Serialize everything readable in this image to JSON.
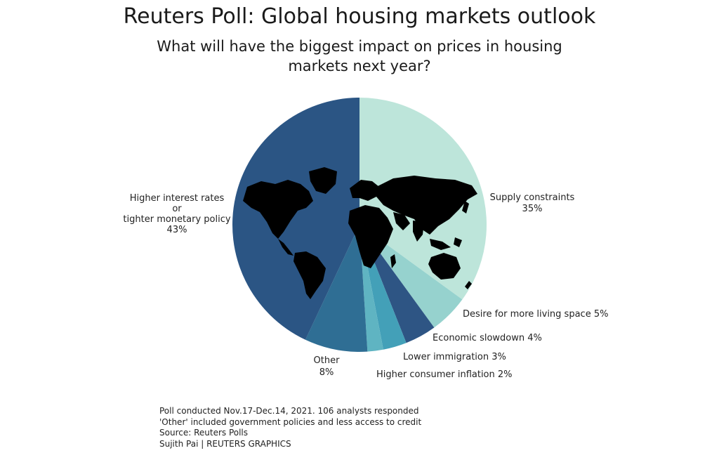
{
  "chart_data": {
    "type": "pie",
    "title": "Reuters Poll: Global housing markets outlook",
    "subtitle": "What will have the biggest impact on prices in housing markets next year?",
    "slices": [
      {
        "label": [
          "Supply constraints"
        ],
        "pct_text": "35%",
        "value": 35,
        "color": "#bde5da"
      },
      {
        "label": [
          "Desire for more living space"
        ],
        "pct_text": "5%",
        "value": 5,
        "color": "#96d2ce"
      },
      {
        "label": [
          "Economic slowdown"
        ],
        "pct_text": "4%",
        "value": 4,
        "color": "#2e5584"
      },
      {
        "label": [
          "Lower immigration"
        ],
        "pct_text": "3%",
        "value": 3,
        "color": "#43a0b8"
      },
      {
        "label": [
          "Higher consumer inflation"
        ],
        "pct_text": "2%",
        "value": 2,
        "color": "#5fb4c2"
      },
      {
        "label": [
          "Other"
        ],
        "pct_text": "8%",
        "value": 8,
        "color": "#2f6e94"
      },
      {
        "label": [
          "Higher interest rates",
          "or",
          "tighter monetary policy"
        ],
        "pct_text": "43%",
        "value": 43,
        "color": "#2b5584"
      }
    ]
  },
  "footer": {
    "lines": [
      "Poll conducted Nov.17-Dec.14, 2021. 106 analysts responded",
      "'Other' included government policies and less access to credit",
      "Source: Reuters Polls",
      "Sujith Pai | REUTERS GRAPHICS"
    ]
  }
}
